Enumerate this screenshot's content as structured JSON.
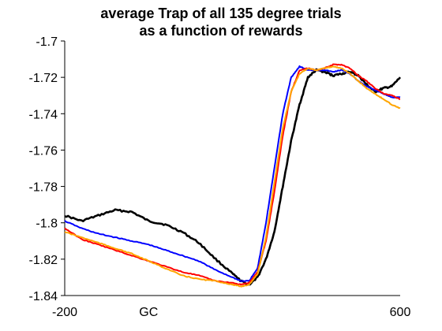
{
  "chart_data": {
    "type": "line",
    "title": "average Trap of all 135 degree trials",
    "subtitle": "as a function of rewards",
    "xlabel": "",
    "ylabel": "",
    "xlim": [
      -200,
      600
    ],
    "ylim": [
      -1.84,
      -1.7
    ],
    "x_tick_labels": [
      {
        "x": -200,
        "label": "-200"
      },
      {
        "x": 0,
        "label": "GC"
      },
      {
        "x": 600,
        "label": "600"
      }
    ],
    "y_ticks": [
      -1.7,
      -1.72,
      -1.74,
      -1.76,
      -1.78,
      -1.8,
      -1.82,
      -1.84
    ],
    "y_tick_labels": [
      "-1.7",
      "-1.72",
      "-1.74",
      "-1.76",
      "-1.78",
      "-1.8",
      "-1.82",
      "-1.84"
    ],
    "grid": false,
    "legend": "none",
    "x": [
      -200,
      -160,
      -120,
      -80,
      -40,
      0,
      40,
      80,
      120,
      160,
      200,
      220,
      240,
      260,
      280,
      300,
      320,
      340,
      360,
      380,
      400,
      420,
      440,
      460,
      480,
      500,
      520,
      540,
      560,
      580,
      600
    ],
    "series": [
      {
        "color": "#000000",
        "values": [
          -1.796,
          -1.799,
          -1.796,
          -1.793,
          -1.794,
          -1.799,
          -1.801,
          -1.805,
          -1.811,
          -1.82,
          -1.828,
          -1.832,
          -1.834,
          -1.83,
          -1.82,
          -1.805,
          -1.78,
          -1.755,
          -1.735,
          -1.72,
          -1.716,
          -1.717,
          -1.719,
          -1.718,
          -1.717,
          -1.719,
          -1.724,
          -1.728,
          -1.726,
          -1.725,
          -1.72
        ]
      },
      {
        "color": "#0000ff",
        "values": [
          -1.799,
          -1.803,
          -1.806,
          -1.808,
          -1.81,
          -1.812,
          -1.815,
          -1.818,
          -1.821,
          -1.826,
          -1.83,
          -1.832,
          -1.832,
          -1.825,
          -1.8,
          -1.77,
          -1.74,
          -1.72,
          -1.714,
          -1.716,
          -1.716,
          -1.716,
          -1.717,
          -1.716,
          -1.718,
          -1.722,
          -1.725,
          -1.727,
          -1.729,
          -1.731,
          -1.731
        ]
      },
      {
        "color": "#ff0000",
        "values": [
          -1.803,
          -1.809,
          -1.812,
          -1.815,
          -1.818,
          -1.821,
          -1.824,
          -1.827,
          -1.829,
          -1.832,
          -1.833,
          -1.834,
          -1.833,
          -1.827,
          -1.81,
          -1.783,
          -1.752,
          -1.728,
          -1.716,
          -1.715,
          -1.716,
          -1.715,
          -1.713,
          -1.713,
          -1.715,
          -1.719,
          -1.722,
          -1.726,
          -1.729,
          -1.73,
          -1.732
        ]
      },
      {
        "color": "#ffa500",
        "values": [
          -1.805,
          -1.808,
          -1.811,
          -1.814,
          -1.817,
          -1.821,
          -1.825,
          -1.829,
          -1.831,
          -1.832,
          -1.834,
          -1.835,
          -1.834,
          -1.828,
          -1.808,
          -1.778,
          -1.748,
          -1.728,
          -1.718,
          -1.715,
          -1.716,
          -1.715,
          -1.714,
          -1.715,
          -1.718,
          -1.722,
          -1.726,
          -1.729,
          -1.732,
          -1.735,
          -1.737
        ]
      }
    ]
  }
}
